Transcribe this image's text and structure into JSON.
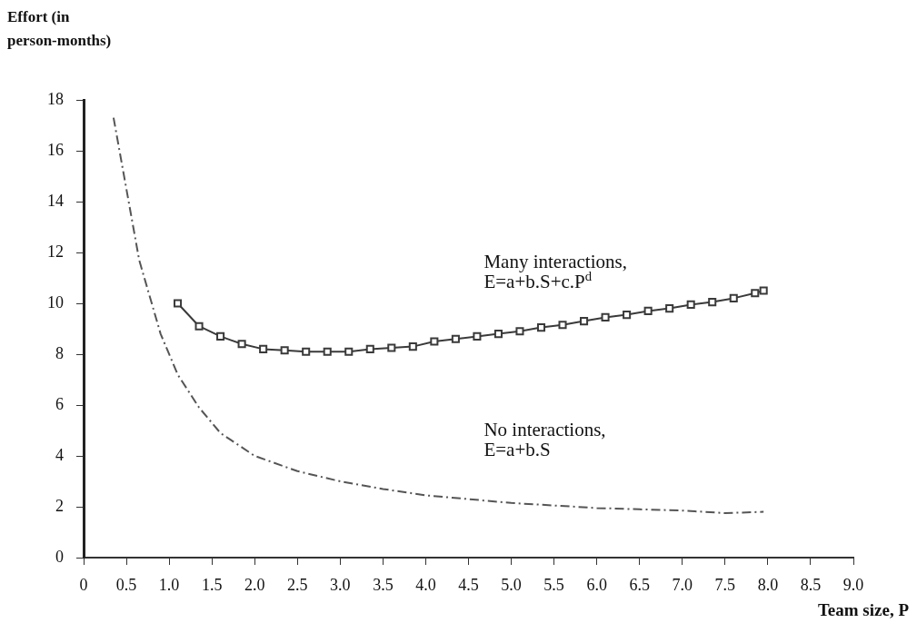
{
  "chart_data": {
    "type": "line",
    "xlabel": "Team size, P",
    "ylabel": "Effort (in person-months)",
    "xlim": [
      0,
      9
    ],
    "ylim": [
      0,
      18
    ],
    "xticks": [
      0,
      {
        "value": 0.5,
        "label": "0.5"
      },
      {
        "value": 1,
        "label": "1.0"
      },
      {
        "value": 1.5,
        "label": "1.5"
      },
      {
        "value": 2,
        "label": "2.0"
      },
      {
        "value": 2.5,
        "label": "2.5"
      },
      {
        "value": 3,
        "label": "3.0"
      },
      {
        "value": 3.5,
        "label": "3.5"
      },
      {
        "value": 4,
        "label": "4.0"
      },
      {
        "value": 4.5,
        "label": "4.5"
      },
      {
        "value": 5,
        "label": "5.0"
      },
      {
        "value": 5.5,
        "label": "5.5"
      },
      {
        "value": 6,
        "label": "6.0"
      },
      {
        "value": 6.5,
        "label": "6.5"
      },
      {
        "value": 7,
        "label": "7.0"
      },
      {
        "value": 7.5,
        "label": "7.5"
      },
      {
        "value": 8,
        "label": "8.0"
      },
      {
        "value": 8.5,
        "label": "8.5"
      },
      {
        "value": 9,
        "label": "9.0"
      }
    ],
    "yticks": [
      0,
      2,
      4,
      6,
      8,
      10,
      12,
      14,
      16,
      18
    ],
    "grid": false,
    "legend": false,
    "series": [
      {
        "color": "#3a3a3a",
        "marker": "square",
        "line_style": "solid",
        "x": [
          1.1,
          1.35,
          1.6,
          1.85,
          2.1,
          2.35,
          2.6,
          2.85,
          3.1,
          3.35,
          3.6,
          3.85,
          4.1,
          4.35,
          4.6,
          4.85,
          5.1,
          5.35,
          5.6,
          5.85,
          6.1,
          6.35,
          6.6,
          6.85,
          7.1,
          7.35,
          7.6,
          7.85,
          7.95
        ],
        "values": [
          10.0,
          9.1,
          8.7,
          8.4,
          8.2,
          8.15,
          8.1,
          8.1,
          8.1,
          8.2,
          8.25,
          8.3,
          8.5,
          8.6,
          8.7,
          8.8,
          8.9,
          9.05,
          9.15,
          9.3,
          9.45,
          9.55,
          9.7,
          9.8,
          9.95,
          10.05,
          10.2,
          10.4,
          10.5
        ]
      },
      {
        "color": "#555555",
        "marker": "none",
        "line_style": "dashed",
        "x": [
          0.35,
          0.65,
          0.9,
          1.1,
          1.35,
          1.6,
          2.0,
          2.5,
          3.0,
          3.5,
          4.0,
          4.5,
          5.0,
          5.5,
          6.0,
          6.5,
          7.0,
          7.5,
          7.95
        ],
        "values": [
          17.3,
          11.7,
          8.8,
          7.2,
          5.9,
          4.9,
          4.0,
          3.4,
          3.0,
          2.7,
          2.45,
          2.3,
          2.15,
          2.05,
          1.95,
          1.9,
          1.85,
          1.75,
          1.8
        ]
      }
    ],
    "annotations": [
      "Many interactions,\nE=a+b.S+c.P$^{d}$",
      "No interactions,\nE=a+b.S"
    ]
  }
}
